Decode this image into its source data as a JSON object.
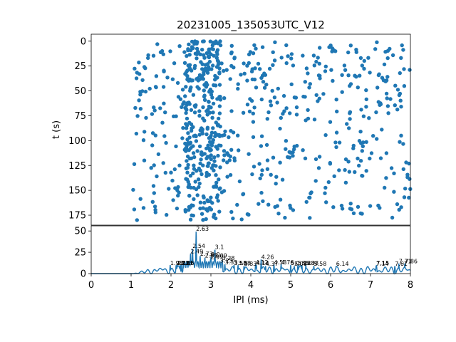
{
  "chart_data": [
    {
      "type": "scatter",
      "title": "20231005_135053UTC_V12",
      "xlabel": "",
      "ylabel": "t (s)",
      "xlim": [
        0,
        8
      ],
      "ylim": [
        185,
        -7
      ],
      "y_inverted": true,
      "x_ticks": [],
      "y_ticks": [
        0,
        25,
        50,
        75,
        100,
        125,
        150,
        175
      ],
      "y_tick_labels": [
        "0",
        "25",
        "50",
        "75",
        "100",
        "125",
        "150",
        "175"
      ],
      "color": "#1f77b4",
      "x_start": 1.05,
      "dense_band_x": [
        2.35,
        3.25
      ],
      "bands": [
        {
          "y": [
            0,
            35
          ],
          "n": 200
        },
        {
          "y": [
            35,
            75
          ],
          "n": 190
        },
        {
          "y": [
            75,
            90
          ],
          "n": 45
        },
        {
          "y": [
            90,
            130
          ],
          "n": 190
        },
        {
          "y": [
            130,
            180
          ],
          "n": 175
        }
      ]
    },
    {
      "type": "line",
      "title": "",
      "xlabel": "IPI (ms)",
      "ylabel": "",
      "xlim": [
        0,
        8
      ],
      "ylim": [
        0,
        56
      ],
      "x_ticks": [
        0,
        1,
        2,
        3,
        4,
        5,
        6,
        7,
        8
      ],
      "x_tick_labels": [
        "0",
        "1",
        "2",
        "3",
        "4",
        "5",
        "6",
        "7",
        "8"
      ],
      "y_ticks": [
        0,
        25,
        50
      ],
      "y_tick_labels": [
        "0",
        "25",
        "50"
      ],
      "color": "#1f77b4",
      "peaks": [
        {
          "x": 2.63,
          "y": 50,
          "label": "2.63"
        },
        {
          "x": 2.54,
          "y": 30,
          "label": "2.54"
        },
        {
          "x": 2.49,
          "y": 24,
          "label": "2.49"
        },
        {
          "x": 3.1,
          "y": 29,
          "label": "3.1"
        },
        {
          "x": 2.73,
          "y": 21,
          "label": "2.73"
        },
        {
          "x": 2.85,
          "y": 19,
          "label": "2.85"
        },
        {
          "x": 3.0,
          "y": 20,
          "label": "3.0"
        },
        {
          "x": 3.09,
          "y": 19,
          "label": "3.09"
        },
        {
          "x": 2.99,
          "y": 17,
          "label": "2.99"
        },
        {
          "x": 3.28,
          "y": 16,
          "label": "3.28"
        },
        {
          "x": 3.23,
          "y": 13,
          "label": "3.23"
        },
        {
          "x": 3.35,
          "y": 11,
          "label": "3.35"
        },
        {
          "x": 3.58,
          "y": 10,
          "label": "3.58"
        },
        {
          "x": 3.68,
          "y": 10,
          "label": "3.68"
        },
        {
          "x": 3.83,
          "y": 9,
          "label": "3.83"
        },
        {
          "x": 4.26,
          "y": 17,
          "label": "4.26"
        },
        {
          "x": 4.12,
          "y": 11,
          "label": "4.12"
        },
        {
          "x": 4.14,
          "y": 10,
          "label": "4.14"
        },
        {
          "x": 4.37,
          "y": 9,
          "label": "4.37"
        },
        {
          "x": 4.58,
          "y": 11,
          "label": "4.58"
        },
        {
          "x": 4.76,
          "y": 11,
          "label": "4.76"
        },
        {
          "x": 5.0,
          "y": 10,
          "label": "5.0"
        },
        {
          "x": 5.09,
          "y": 9,
          "label": "5.09"
        },
        {
          "x": 5.18,
          "y": 10,
          "label": "5.18"
        },
        {
          "x": 5.28,
          "y": 10,
          "label": "5.28"
        },
        {
          "x": 5.38,
          "y": 10,
          "label": "5.38"
        },
        {
          "x": 5.58,
          "y": 9,
          "label": "5.58"
        },
        {
          "x": 6.14,
          "y": 9,
          "label": "6.14"
        },
        {
          "x": 7.15,
          "y": 10,
          "label": "7.15"
        },
        {
          "x": 7.14,
          "y": 9,
          "label": "7.14"
        },
        {
          "x": 7.61,
          "y": 9,
          "label": "7.61"
        },
        {
          "x": 7.71,
          "y": 12,
          "label": "7.71"
        },
        {
          "x": 7.86,
          "y": 12,
          "label": "7.86"
        },
        {
          "x": 1.98,
          "y": 10,
          "label": "1.98"
        },
        {
          "x": 2.13,
          "y": 10,
          "label": "2.13"
        },
        {
          "x": 2.16,
          "y": 10,
          "label": "2.16"
        },
        {
          "x": 2.23,
          "y": 10,
          "label": "2.23"
        },
        {
          "x": 2.26,
          "y": 10,
          "label": "2.26"
        }
      ]
    }
  ]
}
